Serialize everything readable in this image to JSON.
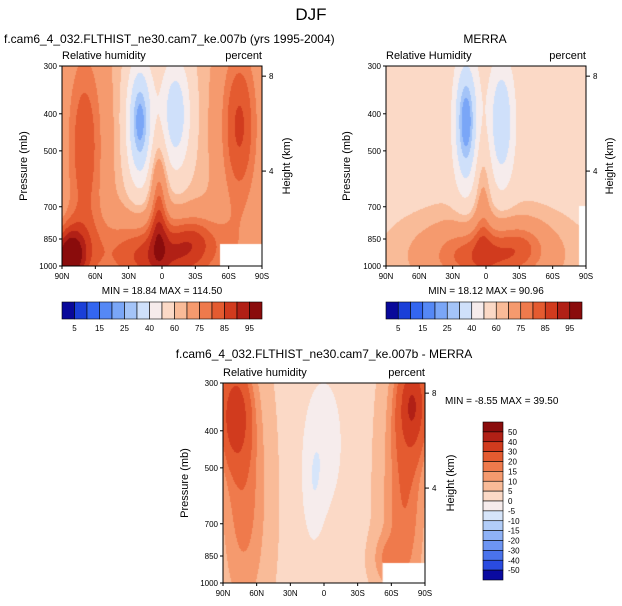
{
  "figure": {
    "title": "DJF"
  },
  "chart_data": [
    {
      "type": "heatmap",
      "title": "f.cam6_4_032.FLTHIST_ne30.cam7_ke.007b (yrs 1995-2004)",
      "left_label": "Relative humidity",
      "right_label": "percent",
      "ylabel": "Pressure (mb)",
      "ylabel_right": "Height (km)",
      "x_ticks": [
        "90N",
        "60N",
        "30N",
        "0",
        "30S",
        "60S",
        "90S"
      ],
      "y_ticks": [
        300,
        400,
        500,
        700,
        850,
        1000
      ],
      "height_ticks": [
        8,
        4
      ],
      "min": 18.84,
      "max": 114.5,
      "stats_text": "MIN =  18.84   MAX =  114.50",
      "colorbar_labels": [
        "5",
        "15",
        "25",
        "40",
        "60",
        "75",
        "85",
        "95"
      ]
    },
    {
      "type": "heatmap",
      "title": "MERRA",
      "left_label": "Relative Humidity",
      "right_label": "percent",
      "ylabel": "Pressure (mb)",
      "ylabel_right": "Height (km)",
      "x_ticks": [
        "90N",
        "60N",
        "30N",
        "0",
        "30S",
        "60S",
        "90S"
      ],
      "y_ticks": [
        300,
        400,
        500,
        700,
        850,
        1000
      ],
      "height_ticks": [
        8,
        4
      ],
      "min": 18.12,
      "max": 90.96,
      "stats_text": "MIN =  18.12   MAX =  90.96",
      "colorbar_labels": [
        "5",
        "15",
        "25",
        "40",
        "60",
        "75",
        "85",
        "95"
      ]
    },
    {
      "type": "heatmap",
      "title": "f.cam6_4_032.FLTHIST_ne30.cam7_ke.007b - MERRA",
      "left_label": "Relative humidity",
      "right_label": "percent",
      "ylabel": "Pressure (mb)",
      "ylabel_right": "Height (km)",
      "x_ticks": [
        "90N",
        "60N",
        "30N",
        "0",
        "30S",
        "60S",
        "90S"
      ],
      "y_ticks": [
        300,
        400,
        500,
        700,
        850,
        1000
      ],
      "height_ticks": [
        8,
        4
      ],
      "min": -8.55,
      "max": 39.5,
      "stats_text": "MIN =  -8.55   MAX =  39.50",
      "colorbar_labels": [
        "50",
        "40",
        "30",
        "20",
        "15",
        "10",
        "5",
        "0",
        "-5",
        "-10",
        "-15",
        "-20",
        "-30",
        "-40",
        "-50"
      ]
    }
  ],
  "palettes": {
    "abs": [
      "#08089a",
      "#1a3fd8",
      "#3366f0",
      "#5588f5",
      "#7aa6f7",
      "#a4c4f8",
      "#cfe0fa",
      "#f6ecec",
      "#fbd9c6",
      "#f9bb98",
      "#f59a6e",
      "#ef7a4c",
      "#e45b30",
      "#d13b1e",
      "#b12016",
      "#8a0c0c"
    ],
    "diff": [
      "#8a0c0c",
      "#b12016",
      "#d13b1e",
      "#e45b30",
      "#ef7a4c",
      "#f59a6e",
      "#f9bb98",
      "#fbd9c6",
      "#f6ecec",
      "#d6e5fa",
      "#b2cdf8",
      "#8fb2f6",
      "#6d95f3",
      "#4a73ec",
      "#2a4be0",
      "#0a0aa0"
    ]
  }
}
